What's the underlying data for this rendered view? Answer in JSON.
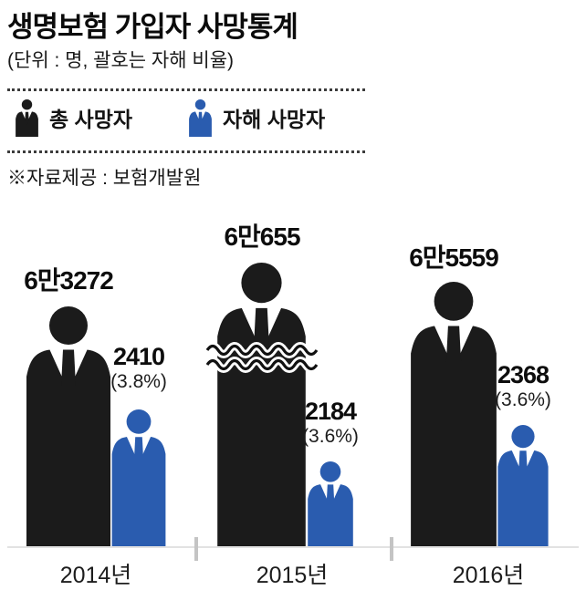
{
  "header": {
    "title": "생명보험 가입자 사망통계",
    "subtitle": "(단위 : 명, 괄호는 자해 비율)"
  },
  "legend": {
    "total": "총 사망자",
    "suicide": "자해 사망자"
  },
  "source_note": "※자료제공 : 보험개발원",
  "colors": {
    "total": "#1b1b1b",
    "suicide": "#2a5caf"
  },
  "chart_data": {
    "type": "pictogram-bar",
    "title": "생명보험 가입자 사망통계",
    "unit_note": "단위 : 명, 괄호는 자해 비율",
    "source": "자료제공 : 보험개발원",
    "categories": [
      "2014년",
      "2015년",
      "2016년"
    ],
    "series": [
      {
        "name": "총 사망자",
        "color": "#1b1b1b",
        "values": [
          63272,
          60655,
          65559
        ],
        "value_labels": [
          "6만3272",
          "6만655",
          "6만5559"
        ]
      },
      {
        "name": "자해 사망자",
        "color": "#2a5caf",
        "values": [
          2410,
          2184,
          2368
        ],
        "value_labels": [
          "2410",
          "2184",
          "2368"
        ],
        "pct_labels": [
          "(3.8%)",
          "(3.6%)",
          "(3.6%)"
        ]
      }
    ],
    "annotations": [
      "2015년 총 사망자 픽토그램에 물결(생략) 기호 표시"
    ],
    "legend_position": "top",
    "grid": false
  }
}
